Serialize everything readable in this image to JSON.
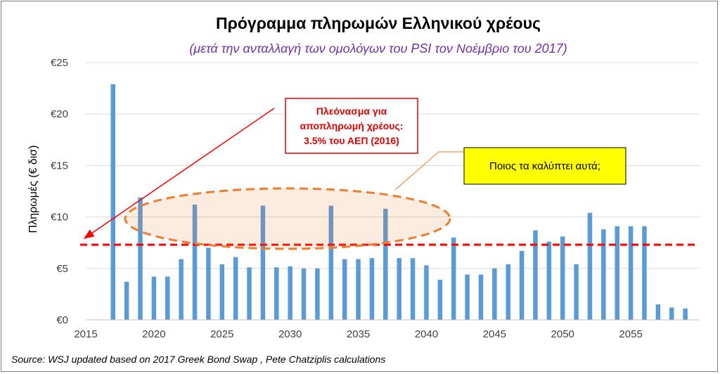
{
  "chart_data": {
    "type": "bar",
    "title": "Πρόγραμμα πληρωμών Ελληνικού χρέους",
    "subtitle": "(μετά την ανταλλαγή των ομολόγων του PSI τον Νοέμβριο του 2017)",
    "ylabel": "Πληρωμές (€ δισ)",
    "xlabel": "",
    "xlim": [
      2015,
      2060
    ],
    "ylim": [
      0,
      25
    ],
    "x_ticks": [
      "2015",
      "2020",
      "2025",
      "2030",
      "2035",
      "2040",
      "2045",
      "2050",
      "2055"
    ],
    "y_ticks": [
      "€0",
      "€5",
      "€10",
      "€15",
      "€20",
      "€25"
    ],
    "grid": true,
    "bar_color": "#5b9bd5",
    "series": [
      {
        "x": [
          2017,
          2018,
          2019,
          2020,
          2021,
          2022,
          2023,
          2024,
          2025,
          2026,
          2027,
          2028,
          2029,
          2030,
          2031,
          2032,
          2033,
          2034,
          2035,
          2036,
          2037,
          2038,
          2039,
          2040,
          2041,
          2042,
          2043,
          2044,
          2045,
          2046,
          2047,
          2048,
          2049,
          2050,
          2051,
          2052,
          2053,
          2054,
          2055,
          2056,
          2057,
          2058,
          2059
        ],
        "values": [
          22.9,
          3.7,
          11.9,
          4.2,
          4.2,
          5.9,
          11.2,
          7.0,
          5.4,
          6.1,
          5.1,
          11.1,
          5.1,
          5.2,
          5.0,
          5.0,
          11.1,
          5.9,
          5.9,
          6.0,
          10.8,
          6.0,
          6.0,
          5.3,
          3.9,
          8.0,
          4.4,
          4.4,
          5.0,
          5.4,
          6.7,
          8.7,
          7.6,
          8.1,
          5.4,
          10.4,
          8.8,
          9.1,
          9.1,
          9.1,
          1.5,
          1.2,
          1.1
        ]
      }
    ],
    "reference_line": {
      "value": 7.3,
      "color": "#ff0000",
      "style": "dashed"
    },
    "annotations": {
      "surplus_note": [
        "Πλεόνασμα για",
        "αποπληρωμή χρέους:",
        "3.5% του ΑΕΠ (2016)"
      ],
      "question_note": "Ποιος τα καλύπτει αυτά;"
    },
    "colors": {
      "highlight_ellipse": "#ed7d31",
      "question_box_fill": "#ffff00",
      "arrow": "#ff0000"
    },
    "source": "Source: WSJ updated based on 2017 Greek Bond Swap , Pete Chatziplis calculations"
  }
}
